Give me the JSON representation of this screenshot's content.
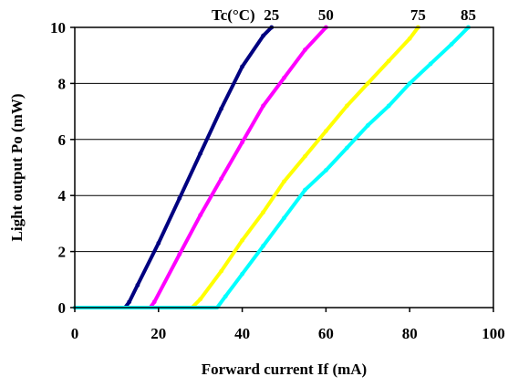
{
  "chart_data": {
    "type": "line",
    "title": "",
    "xlabel": "Forward current If (mA)",
    "ylabel": "Light output Po (mW)",
    "xlim": [
      0,
      100
    ],
    "ylim": [
      0,
      10
    ],
    "x_ticks": [
      "0",
      "20",
      "40",
      "60",
      "80",
      "100"
    ],
    "y_ticks": [
      "0",
      "2",
      "4",
      "6",
      "8",
      "10"
    ],
    "grid": "horizontal",
    "legend_title": "Tc(°C)",
    "legend_placement": "top",
    "series": [
      {
        "name": "25",
        "color": "#000080",
        "x": [
          0,
          12,
          13,
          15,
          20,
          25,
          30,
          35,
          40,
          45,
          47
        ],
        "y": [
          0,
          0,
          0.2,
          0.8,
          2.3,
          3.9,
          5.5,
          7.1,
          8.6,
          9.7,
          10
        ]
      },
      {
        "name": "50",
        "color": "#ff00ff",
        "x": [
          0,
          18,
          19,
          25,
          30,
          35,
          40,
          45,
          50,
          55,
          60
        ],
        "y": [
          0,
          0,
          0.2,
          1.9,
          3.3,
          4.6,
          5.9,
          7.2,
          8.2,
          9.2,
          10
        ]
      },
      {
        "name": "75",
        "color": "#ffff00",
        "x": [
          0,
          28,
          30,
          35,
          40,
          45,
          50,
          55,
          60,
          65,
          70,
          75,
          80,
          82
        ],
        "y": [
          0,
          0,
          0.3,
          1.3,
          2.4,
          3.4,
          4.5,
          5.4,
          6.3,
          7.2,
          8.0,
          8.8,
          9.6,
          10
        ]
      },
      {
        "name": "85",
        "color": "#00ffff",
        "x": [
          0,
          34,
          36,
          40,
          45,
          50,
          55,
          60,
          65,
          70,
          75,
          80,
          85,
          90,
          94
        ],
        "y": [
          0,
          0,
          0.4,
          1.2,
          2.2,
          3.2,
          4.2,
          4.9,
          5.7,
          6.5,
          7.2,
          8.0,
          8.7,
          9.4,
          10
        ]
      }
    ]
  }
}
